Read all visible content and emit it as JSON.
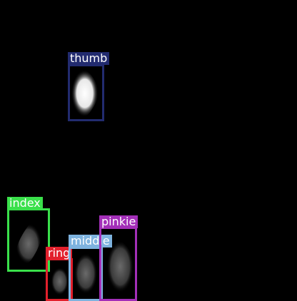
{
  "detections": [
    {
      "label": "thumb",
      "color": "#222b6f"
    },
    {
      "label": "index",
      "color": "#3ae04b"
    },
    {
      "label": "ring",
      "color": "#e2202c"
    },
    {
      "label": "middle",
      "color": "#7eb3df"
    },
    {
      "label": "pinkie",
      "color": "#a32fb8"
    }
  ]
}
